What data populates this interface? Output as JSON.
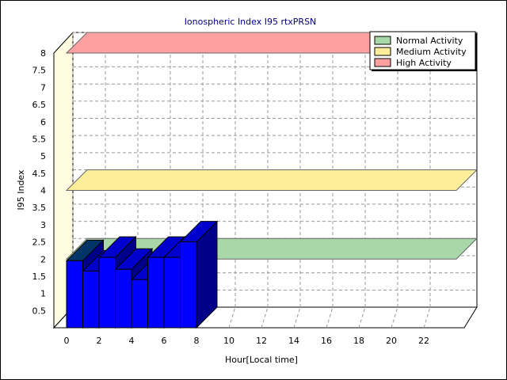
{
  "chart_data": {
    "type": "bar",
    "title": "Ionospheric Index I95 rtxPRSN",
    "xlabel": "Hour[Local time]",
    "ylabel": "I95 Index",
    "x_ticks": [
      "0",
      "2",
      "4",
      "6",
      "8",
      "10",
      "12",
      "14",
      "16",
      "18",
      "20",
      "22"
    ],
    "y_ticks": [
      "0.5",
      "1",
      "1.5",
      "2",
      "2.5",
      "3",
      "3.5",
      "4",
      "4.5",
      "5",
      "5.5",
      "6",
      "6.5",
      "7",
      "7.5",
      "8"
    ],
    "xlim": [
      0,
      24
    ],
    "ylim": [
      0,
      8
    ],
    "grid": true,
    "legend_position": "top-right",
    "bars": {
      "color": "#0000ff",
      "x": [
        0,
        1,
        2,
        3,
        4,
        5,
        6,
        7
      ],
      "values": [
        1.95,
        1.65,
        2.05,
        1.7,
        1.4,
        2.05,
        2.05,
        2.5
      ]
    },
    "bands": [
      {
        "name": "Normal Activity",
        "value": 2.0,
        "color": "#a8d8a8"
      },
      {
        "name": "Medium Activity",
        "value": 4.0,
        "color": "#ffee99"
      },
      {
        "name": "High Activity",
        "value": 8.0,
        "color": "#ffa0a0"
      }
    ]
  }
}
